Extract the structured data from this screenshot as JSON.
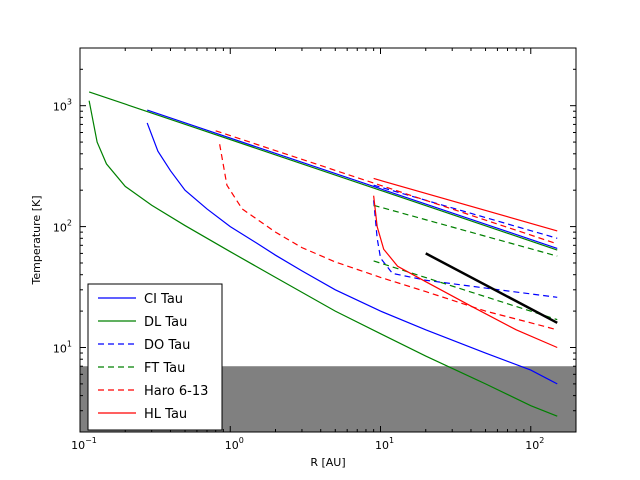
{
  "chart_data": {
    "type": "line",
    "title": "",
    "xlabel": "R [AU]",
    "ylabel": "Temperature [K]",
    "xscale": "log",
    "yscale": "log",
    "xlim": [
      0.1,
      200
    ],
    "ylim": [
      2,
      3000
    ],
    "grid": false,
    "legend_position": "lower-left",
    "x_ticks": [
      {
        "value": 0.1,
        "base": "10",
        "exp": "−1"
      },
      {
        "value": 1,
        "base": "10",
        "exp": "0"
      },
      {
        "value": 10,
        "base": "10",
        "exp": "1"
      },
      {
        "value": 100,
        "base": "10",
        "exp": "2"
      }
    ],
    "y_ticks": [
      {
        "value": 10,
        "base": "10",
        "exp": "1"
      },
      {
        "value": 100,
        "base": "10",
        "exp": "2"
      },
      {
        "value": 1000,
        "base": "10",
        "exp": "3"
      }
    ],
    "shaded_band": {
      "y_from": 2,
      "y_to": 7,
      "color": "#808080"
    },
    "legend": [
      {
        "label": "CI Tau",
        "color": "#0000ff",
        "dash": "solid"
      },
      {
        "label": "DL Tau",
        "color": "#008000",
        "dash": "solid"
      },
      {
        "label": "DO Tau",
        "color": "#0000ff",
        "dash": "dashed"
      },
      {
        "label": "FT Tau",
        "color": "#008000",
        "dash": "dashed"
      },
      {
        "label": "Haro 6-13",
        "color": "#ff0000",
        "dash": "dashed"
      },
      {
        "label": "HL Tau",
        "color": "#ff0000",
        "dash": "solid"
      }
    ],
    "series": [
      {
        "color": "#0000ff",
        "dash": "solid",
        "points": [
          [
            0.28,
            920
          ],
          [
            150,
            66
          ]
        ]
      },
      {
        "color": "#0000ff",
        "dash": "solid",
        "points": [
          [
            0.28,
            720
          ],
          [
            0.33,
            420
          ],
          [
            0.4,
            290
          ],
          [
            0.5,
            200
          ],
          [
            0.7,
            140
          ],
          [
            1,
            100
          ],
          [
            1.5,
            73
          ],
          [
            2,
            58
          ],
          [
            3,
            43
          ],
          [
            5,
            30
          ],
          [
            10,
            20
          ],
          [
            20,
            14
          ],
          [
            50,
            9
          ],
          [
            100,
            6.5
          ],
          [
            150,
            5
          ]
        ]
      },
      {
        "color": "#008000",
        "dash": "solid",
        "points": [
          [
            0.115,
            1300
          ],
          [
            150,
            64
          ]
        ]
      },
      {
        "color": "#008000",
        "dash": "solid",
        "points": [
          [
            0.115,
            1100
          ],
          [
            0.13,
            500
          ],
          [
            0.15,
            330
          ],
          [
            0.2,
            215
          ],
          [
            0.3,
            150
          ],
          [
            0.5,
            102
          ],
          [
            1,
            62
          ],
          [
            2,
            38
          ],
          [
            5,
            20
          ],
          [
            10,
            13
          ],
          [
            20,
            8.5
          ],
          [
            50,
            5
          ],
          [
            100,
            3.3
          ],
          [
            150,
            2.7
          ]
        ]
      },
      {
        "color": "#0000ff",
        "dash": "dashed",
        "points": [
          [
            9,
            220
          ],
          [
            150,
            80
          ]
        ]
      },
      {
        "color": "#0000ff",
        "dash": "dashed",
        "points": [
          [
            9,
            165
          ],
          [
            9.5,
            80
          ],
          [
            10,
            55
          ],
          [
            12,
            41
          ],
          [
            20,
            36
          ],
          [
            50,
            31
          ],
          [
            150,
            26
          ]
        ]
      },
      {
        "color": "#008000",
        "dash": "dashed",
        "points": [
          [
            9,
            150
          ],
          [
            150,
            57
          ]
        ]
      },
      {
        "color": "#008000",
        "dash": "dashed",
        "points": [
          [
            9,
            52
          ],
          [
            150,
            17
          ]
        ]
      },
      {
        "color": "#ff0000",
        "dash": "dashed",
        "points": [
          [
            0.8,
            620
          ],
          [
            150,
            72
          ]
        ]
      },
      {
        "color": "#ff0000",
        "dash": "dashed",
        "points": [
          [
            0.85,
            480
          ],
          [
            0.95,
            220
          ],
          [
            1.2,
            140
          ],
          [
            2,
            90
          ],
          [
            3,
            67
          ],
          [
            5,
            51
          ],
          [
            10,
            38
          ],
          [
            20,
            29
          ],
          [
            50,
            20
          ],
          [
            100,
            16
          ],
          [
            150,
            14
          ]
        ]
      },
      {
        "color": "#ff0000",
        "dash": "solid",
        "points": [
          [
            9,
            250
          ],
          [
            150,
            92
          ]
        ]
      },
      {
        "color": "#ff0000",
        "dash": "solid",
        "points": [
          [
            9,
            180
          ],
          [
            9.5,
            100
          ],
          [
            10.5,
            65
          ],
          [
            13,
            47
          ],
          [
            20,
            35
          ],
          [
            40,
            22
          ],
          [
            80,
            14
          ],
          [
            150,
            10
          ]
        ]
      },
      {
        "color": "#000000",
        "dash": "solid",
        "width": 2.5,
        "points": [
          [
            20,
            60
          ],
          [
            150,
            16
          ]
        ]
      }
    ]
  }
}
